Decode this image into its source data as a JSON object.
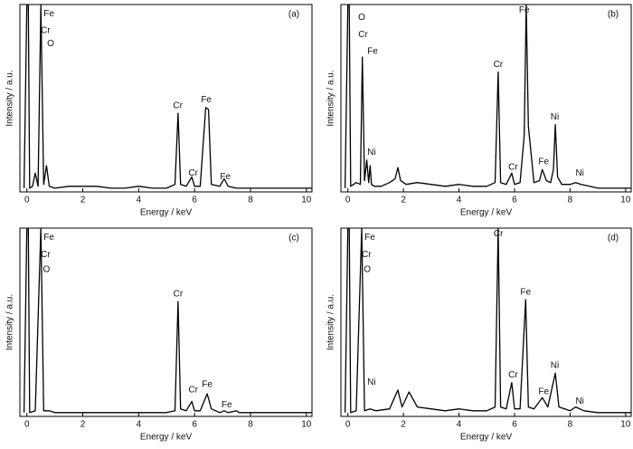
{
  "chart_data": [
    {
      "type": "line",
      "panel_label": "(a)",
      "xlabel": "Energy / keV",
      "ylabel": "Intensity / a.u.",
      "xlim": [
        -0.25,
        10.2
      ],
      "ylim": [
        0,
        100
      ],
      "xticks": [
        0,
        2,
        4,
        6,
        8,
        10
      ],
      "x": [
        -0.1,
        0,
        0.05,
        0.1,
        0.2,
        0.3,
        0.4,
        0.5,
        0.6,
        0.7,
        0.8,
        1.0,
        1.5,
        2.0,
        2.5,
        3,
        3.5,
        4,
        4.5,
        5,
        5.3,
        5.41,
        5.5,
        5.7,
        5.9,
        6.0,
        6.2,
        6.4,
        6.5,
        6.6,
        6.9,
        7.06,
        7.2,
        7.5,
        8,
        9,
        10,
        10.2
      ],
      "values": [
        2,
        100,
        100,
        2,
        3,
        10,
        3,
        100,
        4,
        14,
        3,
        2,
        3,
        3,
        3,
        2,
        2,
        3,
        2,
        2,
        4,
        42,
        4,
        3,
        8,
        3,
        3,
        45,
        44,
        4,
        3,
        7,
        3,
        2,
        2,
        2,
        2,
        2
      ],
      "annotations": [
        "Fe",
        "Cr",
        "O",
        "Cr",
        "Fe",
        "Cr",
        "Fe"
      ]
    },
    {
      "type": "line",
      "panel_label": "(b)",
      "xlabel": "Energy / keV",
      "ylabel": "Intensity / a.u.",
      "xlim": [
        -0.25,
        10.2
      ],
      "ylim": [
        0,
        100
      ],
      "xticks": [
        0,
        2,
        4,
        6,
        8,
        10
      ],
      "x": [
        -0.1,
        0,
        0.05,
        0.1,
        0.3,
        0.45,
        0.52,
        0.6,
        0.68,
        0.75,
        0.8,
        0.85,
        0.95,
        1.2,
        1.5,
        1.7,
        1.8,
        1.9,
        2.1,
        2.5,
        3,
        3.5,
        4,
        4.5,
        5,
        5.3,
        5.41,
        5.5,
        5.7,
        5.9,
        6.0,
        6.2,
        6.35,
        6.42,
        6.5,
        6.7,
        6.9,
        7.0,
        7.15,
        7.3,
        7.4,
        7.47,
        7.55,
        7.7,
        8.0,
        8.2,
        8.4,
        8.7,
        9,
        9.5,
        10,
        10.2
      ],
      "values": [
        2,
        100,
        100,
        3,
        5,
        4,
        72,
        6,
        17,
        5,
        14,
        4,
        3,
        3,
        5,
        7,
        13,
        6,
        4,
        5,
        4,
        3,
        4,
        3,
        3,
        5,
        64,
        5,
        4,
        10,
        4,
        5,
        30,
        100,
        35,
        5,
        6,
        12,
        6,
        5,
        12,
        36,
        8,
        4,
        4,
        5,
        4,
        3,
        2,
        2,
        2,
        2
      ],
      "annotations": [
        "O",
        "Cr",
        "Fe",
        "Ni",
        "Cr",
        "Fe",
        "Cr",
        "Ni",
        "Fe",
        "Ni"
      ]
    },
    {
      "type": "line",
      "panel_label": "(c)",
      "xlabel": "Energy / keV",
      "ylabel": "Intensity / a.u.",
      "xlim": [
        -0.25,
        10.2
      ],
      "ylim": [
        0,
        100
      ],
      "xticks": [
        0,
        2,
        4,
        6,
        8,
        10
      ],
      "x": [
        -0.1,
        0,
        0.05,
        0.1,
        0.3,
        0.5,
        0.6,
        0.8,
        1,
        2,
        3,
        4,
        5,
        5.3,
        5.41,
        5.5,
        5.7,
        5.9,
        6.0,
        6.2,
        6.45,
        6.6,
        6.9,
        7.06,
        7.2,
        7.5,
        7.6,
        8,
        9,
        10,
        10.2
      ],
      "values": [
        2,
        100,
        100,
        2,
        3,
        100,
        3,
        3,
        2,
        2,
        2,
        2,
        2,
        3,
        61,
        4,
        3,
        8,
        3,
        3,
        12,
        4,
        2,
        3,
        2,
        3,
        2,
        2,
        2,
        2,
        2
      ],
      "annotations": [
        "Fe",
        "Cr",
        "O",
        "Cr",
        "Cr",
        "Fe",
        "Fe"
      ]
    },
    {
      "type": "line",
      "panel_label": "(d)",
      "xlabel": "Energy / keV",
      "ylabel": "Intensity / a.u.",
      "xlim": [
        -0.25,
        10.2
      ],
      "ylim": [
        0,
        100
      ],
      "xticks": [
        0,
        2,
        4,
        6,
        8,
        10
      ],
      "x": [
        -0.1,
        0,
        0.05,
        0.1,
        0.3,
        0.5,
        0.6,
        0.8,
        1.0,
        1.5,
        1.8,
        1.95,
        2.2,
        2.5,
        3,
        3.5,
        4,
        4.5,
        5,
        5.3,
        5.41,
        5.5,
        5.7,
        5.9,
        6.0,
        6.2,
        6.4,
        6.5,
        6.7,
        7.0,
        7.2,
        7.47,
        7.6,
        8.0,
        8.2,
        8.5,
        9,
        10,
        10.2
      ],
      "values": [
        2,
        100,
        100,
        2,
        3,
        100,
        3,
        4,
        3,
        4,
        14,
        5,
        13,
        5,
        4,
        3,
        4,
        3,
        3,
        5,
        100,
        5,
        4,
        18,
        4,
        4,
        62,
        5,
        4,
        10,
        5,
        23,
        5,
        3,
        5,
        3,
        2,
        2,
        2
      ],
      "annotations": [
        "Fe",
        "Cr",
        "O",
        "Ni",
        "Cr",
        "Fe",
        "Cr",
        "Ni",
        "Fe",
        "Ni"
      ]
    }
  ]
}
